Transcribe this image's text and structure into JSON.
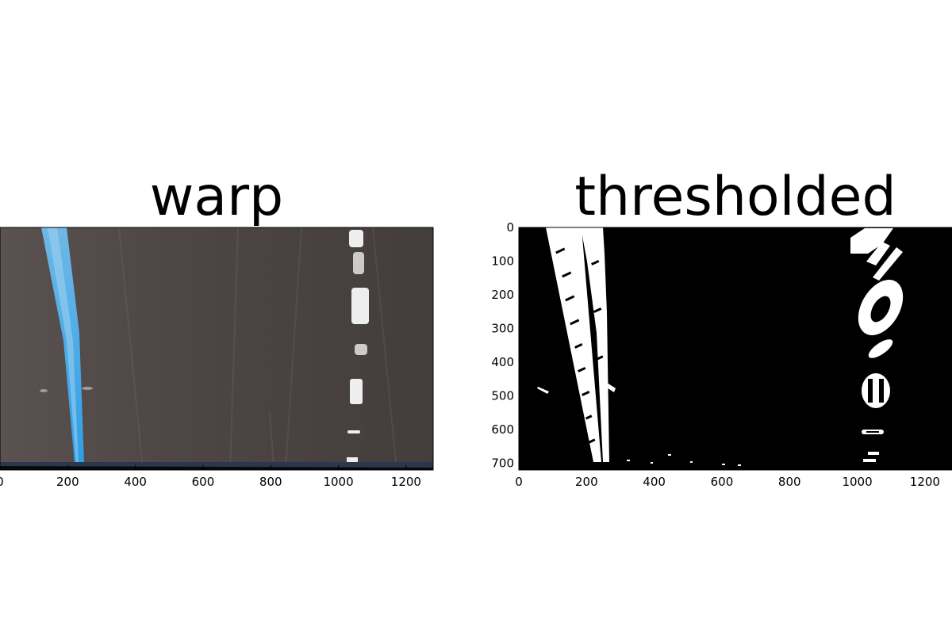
{
  "figure": {
    "panels": [
      {
        "id": "warp",
        "title": "warp"
      },
      {
        "id": "thresholded",
        "title": "thresholded"
      }
    ]
  },
  "chart_data": [
    {
      "type": "image",
      "title": "warp",
      "xlabel": "",
      "ylabel": "",
      "xlim": [
        0,
        1280
      ],
      "ylim": [
        720,
        0
      ],
      "xticks": [
        "0",
        "200",
        "400",
        "600",
        "800",
        "1000",
        "1200"
      ],
      "yticks": [],
      "colors": {
        "road": "#4b4442",
        "left_lane": "#3fa9e8",
        "right_lane": "#f2f2f2"
      },
      "left_lane_x": [
        [
          0,
          150
        ],
        [
          360,
          190
        ],
        [
          720,
          235
        ]
      ],
      "right_lane_x": [
        [
          0,
          1060
        ],
        [
          360,
          1055
        ],
        [
          720,
          1045
        ]
      ]
    },
    {
      "type": "image",
      "title": "thresholded",
      "xlabel": "",
      "ylabel": "",
      "xlim": [
        0,
        1280
      ],
      "ylim": [
        720,
        0
      ],
      "xticks": [
        "0",
        "200",
        "400",
        "600",
        "800",
        "1000",
        "1200"
      ],
      "yticks": [
        "0",
        "100",
        "200",
        "300",
        "400",
        "500",
        "600",
        "700"
      ],
      "colors": {
        "background": "#000000",
        "foreground": "#ffffff"
      },
      "left_lane_x": [
        [
          0,
          80
        ],
        [
          0,
          250
        ],
        [
          720,
          225
        ],
        [
          720,
          255
        ]
      ],
      "right_lane_blobs_y": [
        [
          0,
          100
        ],
        [
          150,
          300
        ],
        [
          330,
          400
        ],
        [
          440,
          530
        ],
        [
          590,
          610
        ],
        [
          660,
          710
        ]
      ]
    }
  ]
}
